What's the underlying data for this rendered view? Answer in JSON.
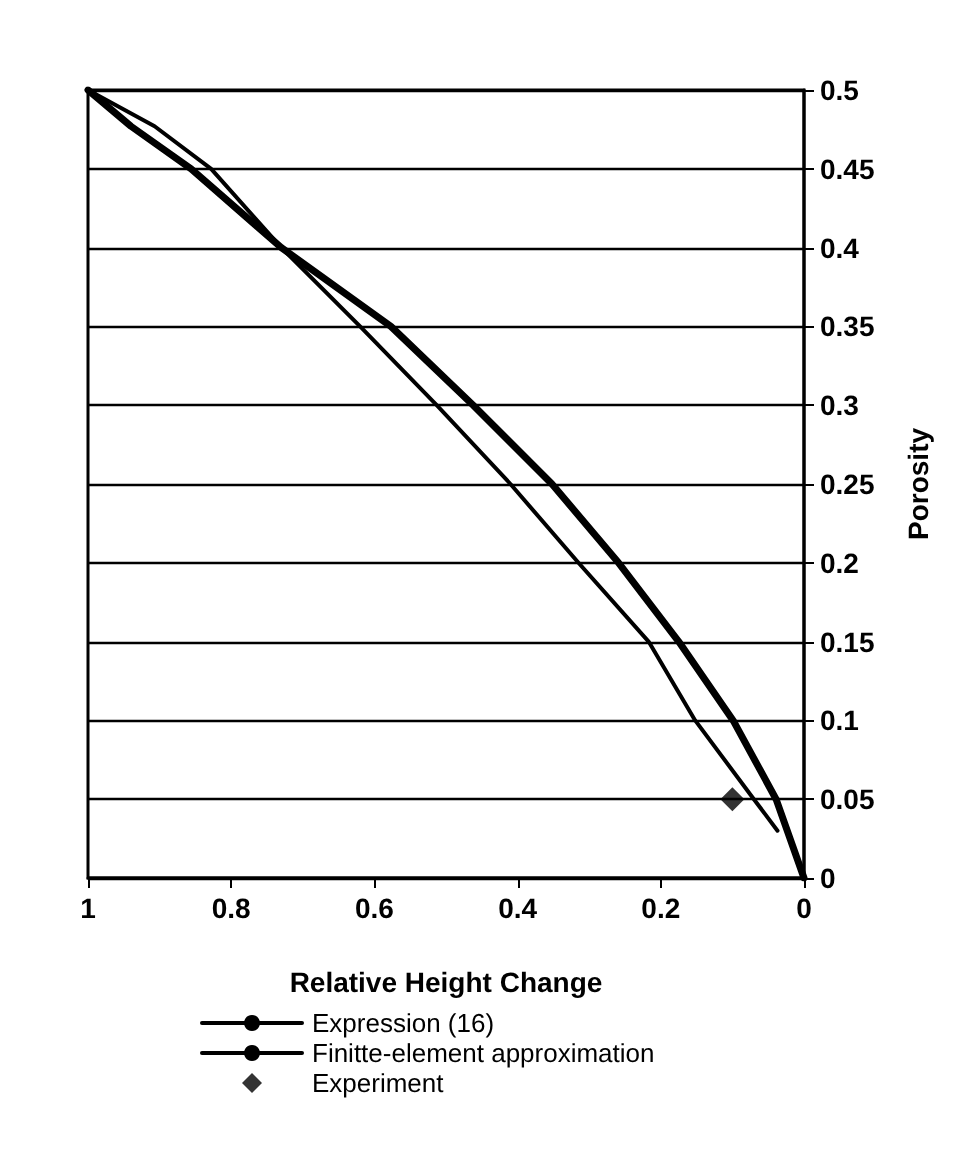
{
  "chart_data": {
    "type": "line",
    "xlabel": "Relative Height Change",
    "ylabel": "Porosity",
    "xlim": [
      1,
      0
    ],
    "xticks": [
      1,
      0.8,
      0.6,
      0.4,
      0.2,
      0
    ],
    "ylim": [
      0,
      0.5
    ],
    "yticks": [
      0,
      0.05,
      0.1,
      0.15,
      0.2,
      0.25,
      0.3,
      0.35,
      0.4,
      0.45,
      0.5
    ],
    "grid": "y",
    "legend": "bottom",
    "marker": "none",
    "series": [
      {
        "name": "Expression (16)",
        "color": "#000000",
        "x": [
          1,
          0.94,
          0.856,
          0.73,
          0.577,
          0.462,
          0.352,
          0.259,
          0.175,
          0.099,
          0.039,
          0
        ],
        "values": [
          0.5,
          0.477,
          0.45,
          0.4,
          0.35,
          0.3,
          0.25,
          0.2,
          0.15,
          0.1,
          0.05,
          0
        ]
      },
      {
        "name": "Finitte-element approximation",
        "color": "#000000",
        "x": [
          1,
          0.907,
          0.828,
          0.73,
          0.62,
          0.513,
          0.41,
          0.315,
          0.217,
          0.152,
          0.07,
          0.037
        ],
        "values": [
          0.5,
          0.477,
          0.45,
          0.4,
          0.35,
          0.3,
          0.25,
          0.2,
          0.15,
          0.1,
          0.05,
          0.03
        ]
      },
      {
        "name": "Experiment",
        "type": "scatter",
        "marker": "diamond",
        "color": "#000000",
        "x": [
          0.1
        ],
        "values": [
          0.05
        ]
      }
    ]
  }
}
